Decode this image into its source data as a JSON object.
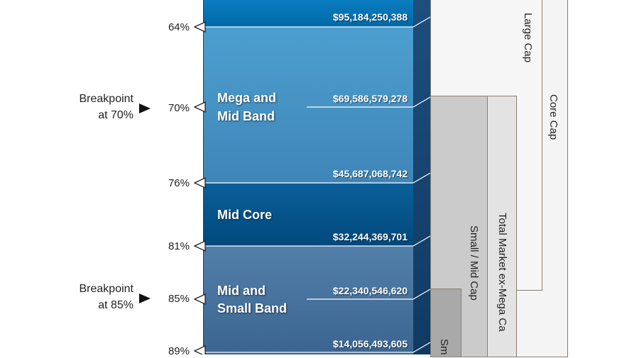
{
  "bands": [
    {
      "name": "Mega and Mid Band"
    },
    {
      "name": "Mid Core"
    },
    {
      "name": "Mid and Small Band"
    }
  ],
  "band_labels": {
    "mega_mid_line1": "Mega and",
    "mega_mid_line2": "Mid Band",
    "mid_core": "Mid Core",
    "mid_small_line1": "Mid and",
    "mid_small_line2": "Small Band"
  },
  "percentiles": [
    "64%",
    "70%",
    "76%",
    "81%",
    "85%",
    "89%"
  ],
  "values": [
    "$95,184,250,388",
    "$69,586,579,278",
    "$45,687,068,742",
    "$32,244,369,701",
    "$22,340,546,620",
    "$14,056,493,605"
  ],
  "breakpoints": {
    "bp70_line1": "Breakpoint",
    "bp70_line2": "at 70%",
    "bp85_line1": "Breakpoint",
    "bp85_line2": "at 85%"
  },
  "segments": {
    "large_cap": "Large Cap",
    "core_cap": "Core Cap",
    "small_mid_cap": "Small / Mid Cap",
    "total_market_ex_mega": "Total Market ex-Mega Ca",
    "small_partial": "Sm"
  },
  "colors": {
    "band_top": "#0073b5",
    "band_light": "#4a9ac8",
    "band_dark": "#005a93",
    "band_bottom": "#4c7aa4",
    "side_dark": "#0f3d66",
    "outline": "#7a6a5a",
    "box_light": "#efefef",
    "box_mid": "#c9c9c9",
    "box_dark": "#a8a8a8"
  }
}
